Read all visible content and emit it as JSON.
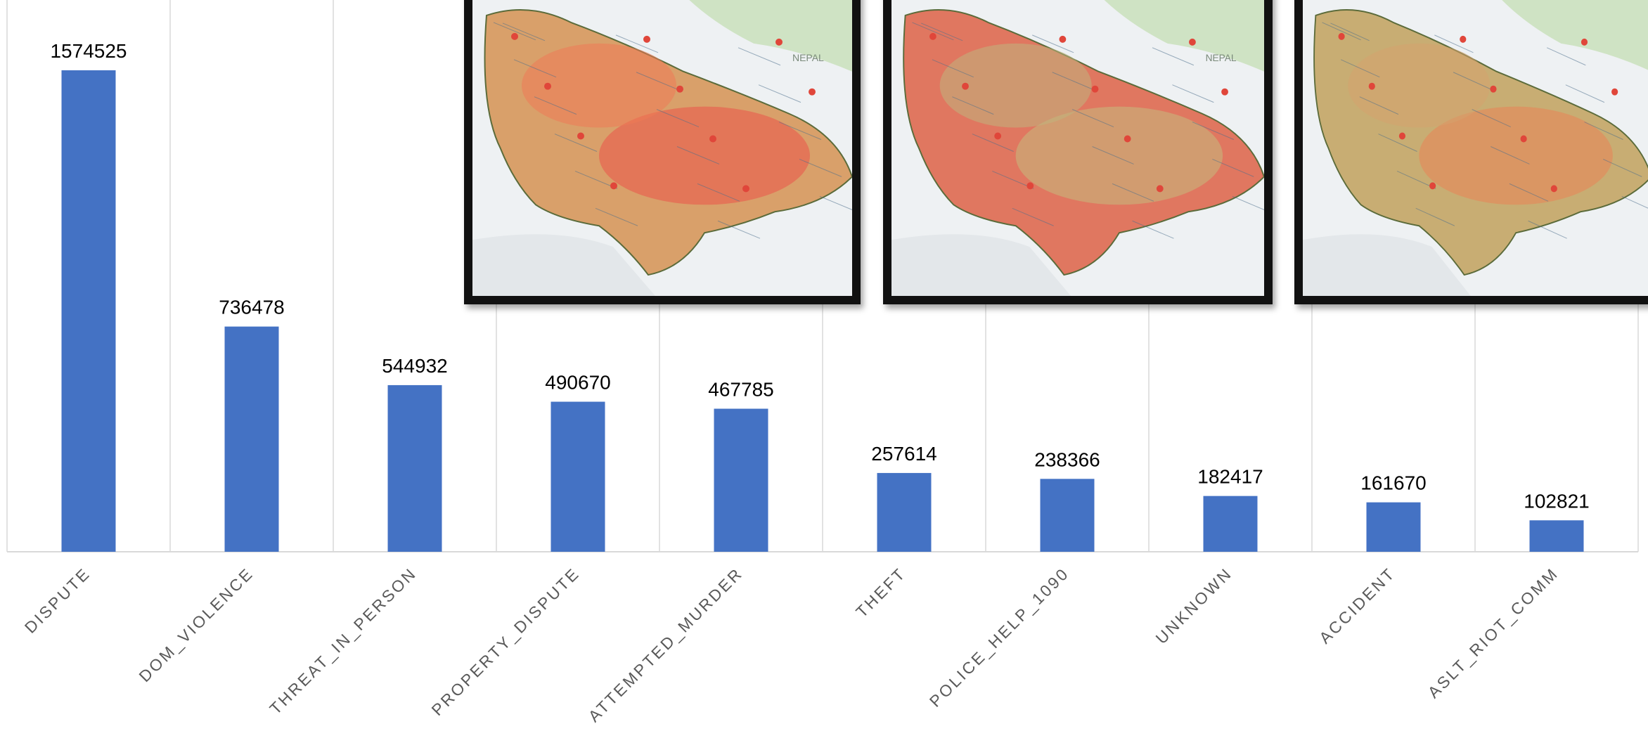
{
  "chart_data": {
    "type": "bar",
    "categories": [
      "DISPUTE",
      "DOM_VIOLENCE",
      "THREAT_IN_PERSON",
      "PROPERTY_DISPUTE",
      "ATTEMPTED_MURDER",
      "THEFT",
      "POLICE_HELP_1090",
      "UNKNOWN",
      "ACCIDENT",
      "ASLT_RIOT_COMM"
    ],
    "values": [
      1574525,
      736478,
      544932,
      490670,
      467785,
      257614,
      238366,
      182417,
      161670,
      102821
    ],
    "data_labels": [
      "1574525",
      "736478",
      "544932",
      "490670",
      "467785",
      "257614",
      "238366",
      "182417",
      "161670",
      "102821"
    ],
    "title": "",
    "xlabel": "",
    "ylabel": "",
    "ylim": [
      0,
      1574525
    ],
    "grid": "vertical category separators",
    "bar_color": "#4472C4",
    "label_color": "#000000",
    "tick_label_color": "#595959",
    "grid_color": "#d9d9d9"
  },
  "map_insets": [
    {
      "map_label": "NEPAL",
      "heat_intensity": "high"
    },
    {
      "map_label": "NEPAL",
      "heat_intensity": "low"
    },
    {
      "map_label": "",
      "heat_intensity": "medium"
    }
  ]
}
